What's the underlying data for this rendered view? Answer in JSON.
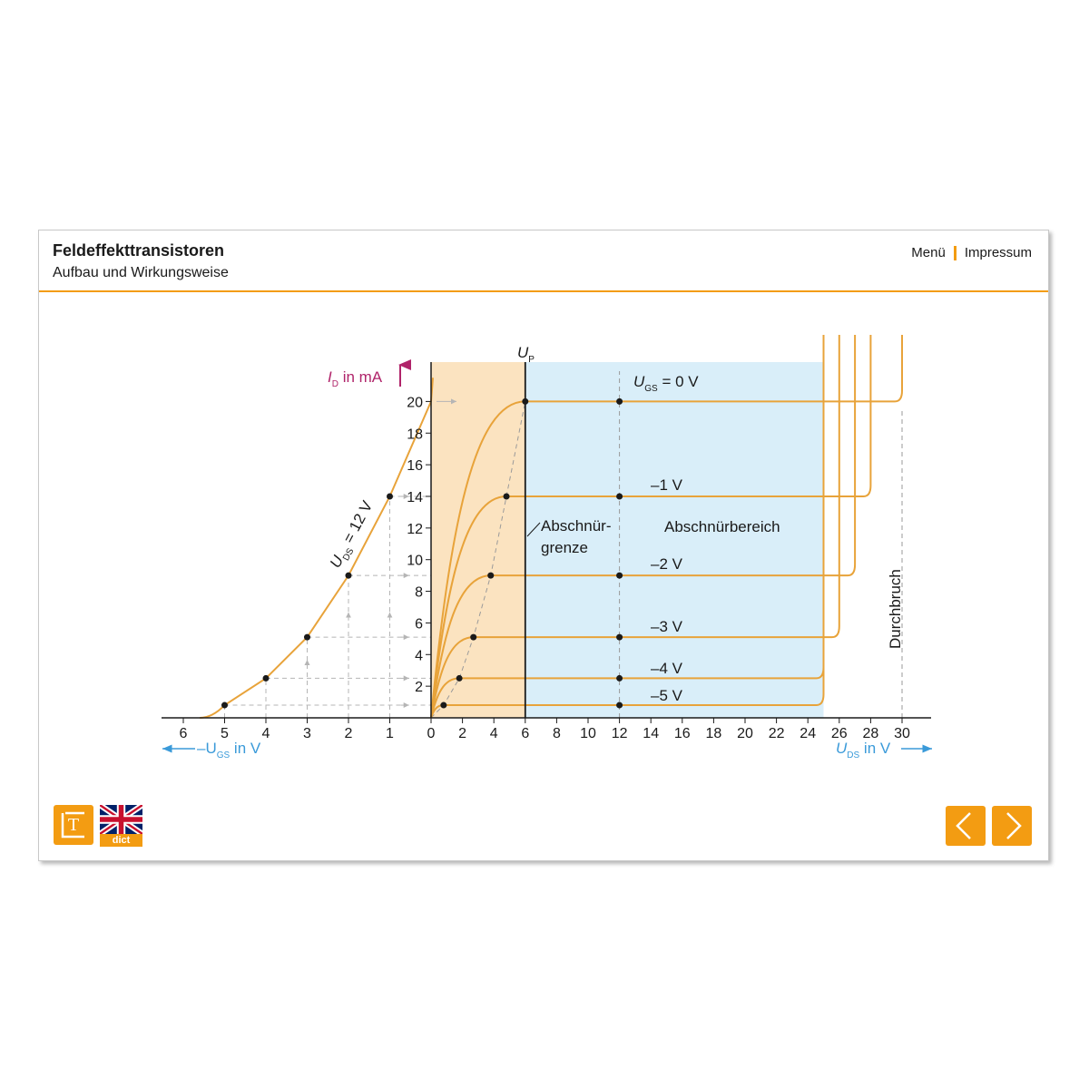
{
  "header": {
    "title": "Feldeffekttransistoren",
    "subtitle": "Aufbau und Wirkungsweise"
  },
  "nav": {
    "menu": "Menü",
    "impressum": "Impressum"
  },
  "buttons": {
    "dict_label": "dict",
    "lexikon_letter": "T"
  },
  "colors": {
    "accent": "#f39c12",
    "curve": "#e8a33a",
    "blue": "#3a9ad9",
    "magenta": "#b0246a",
    "ohmic_fill": "#fbe3c0",
    "pinch_fill": "#d9eef9"
  },
  "labels": {
    "id_axis": "I",
    "id_sub": "D",
    "id_unit": " in mA",
    "ugs_axis": "–U",
    "ugs_sub": "GS",
    "ugs_unit": " in V",
    "uds_axis": "U",
    "uds_sub": "DS",
    "uds_unit": " in V",
    "up": "U",
    "up_sub": "P",
    "ugs0_prefix": "U",
    "ugs0_sub": "GS",
    "ugs0_suffix": " = 0 V",
    "curve_m1": "–1 V",
    "curve_m2": "–2 V",
    "curve_m3": "–3 V",
    "curve_m4": "–4 V",
    "curve_m5": "–5 V",
    "transfer_prefix": "U",
    "transfer_sub": "DS",
    "transfer_suffix": " = 12 V",
    "abschnuer1": "Abschnür-",
    "abschnuer2": "grenze",
    "abschnuerbereich": "Abschnürbereich",
    "durchbruch": "Durchbruch"
  },
  "chart_data": {
    "type": "line",
    "title": "",
    "ylabel": "I_D in mA",
    "xlabel_left": "–U_GS in V",
    "xlabel_right": "U_DS in V",
    "y_ticks": [
      2,
      4,
      6,
      8,
      10,
      12,
      14,
      16,
      18,
      20
    ],
    "x_left_ticks": [
      6,
      5,
      4,
      3,
      2,
      1
    ],
    "x_right_ticks": [
      0,
      2,
      4,
      6,
      8,
      10,
      12,
      14,
      16,
      18,
      20,
      22,
      24,
      26,
      28,
      30
    ],
    "ylim": [
      0,
      22
    ],
    "xlim_left": [
      0,
      6
    ],
    "xlim_right": [
      0,
      30
    ],
    "pinch_off_voltage": 6,
    "transfer_curve": {
      "name": "U_DS = 12 V",
      "points": [
        [
          5.6,
          0
        ],
        [
          5,
          0.8
        ],
        [
          4,
          2.5
        ],
        [
          3,
          5.1
        ],
        [
          2,
          9
        ],
        [
          1,
          14
        ],
        [
          0,
          20
        ]
      ]
    },
    "output_curves": [
      {
        "name": "U_GS = 0 V",
        "saturation_current": 20,
        "pinch_point": 6,
        "breakdown_voltage": 30
      },
      {
        "name": "–1 V",
        "saturation_current": 14,
        "pinch_point": 4.8,
        "breakdown_voltage": 28
      },
      {
        "name": "–2 V",
        "saturation_current": 9,
        "pinch_point": 3.8,
        "breakdown_voltage": 27
      },
      {
        "name": "–3 V",
        "saturation_current": 5.1,
        "pinch_point": 2.7,
        "breakdown_voltage": 26
      },
      {
        "name": "–4 V",
        "saturation_current": 2.5,
        "pinch_point": 1.8,
        "breakdown_voltage": 25
      },
      {
        "name": "–5 V",
        "saturation_current": 0.8,
        "pinch_point": 0.8,
        "breakdown_voltage": 25
      }
    ],
    "regions": [
      "Abschnürgrenze",
      "Abschnürbereich",
      "Durchbruch"
    ]
  }
}
